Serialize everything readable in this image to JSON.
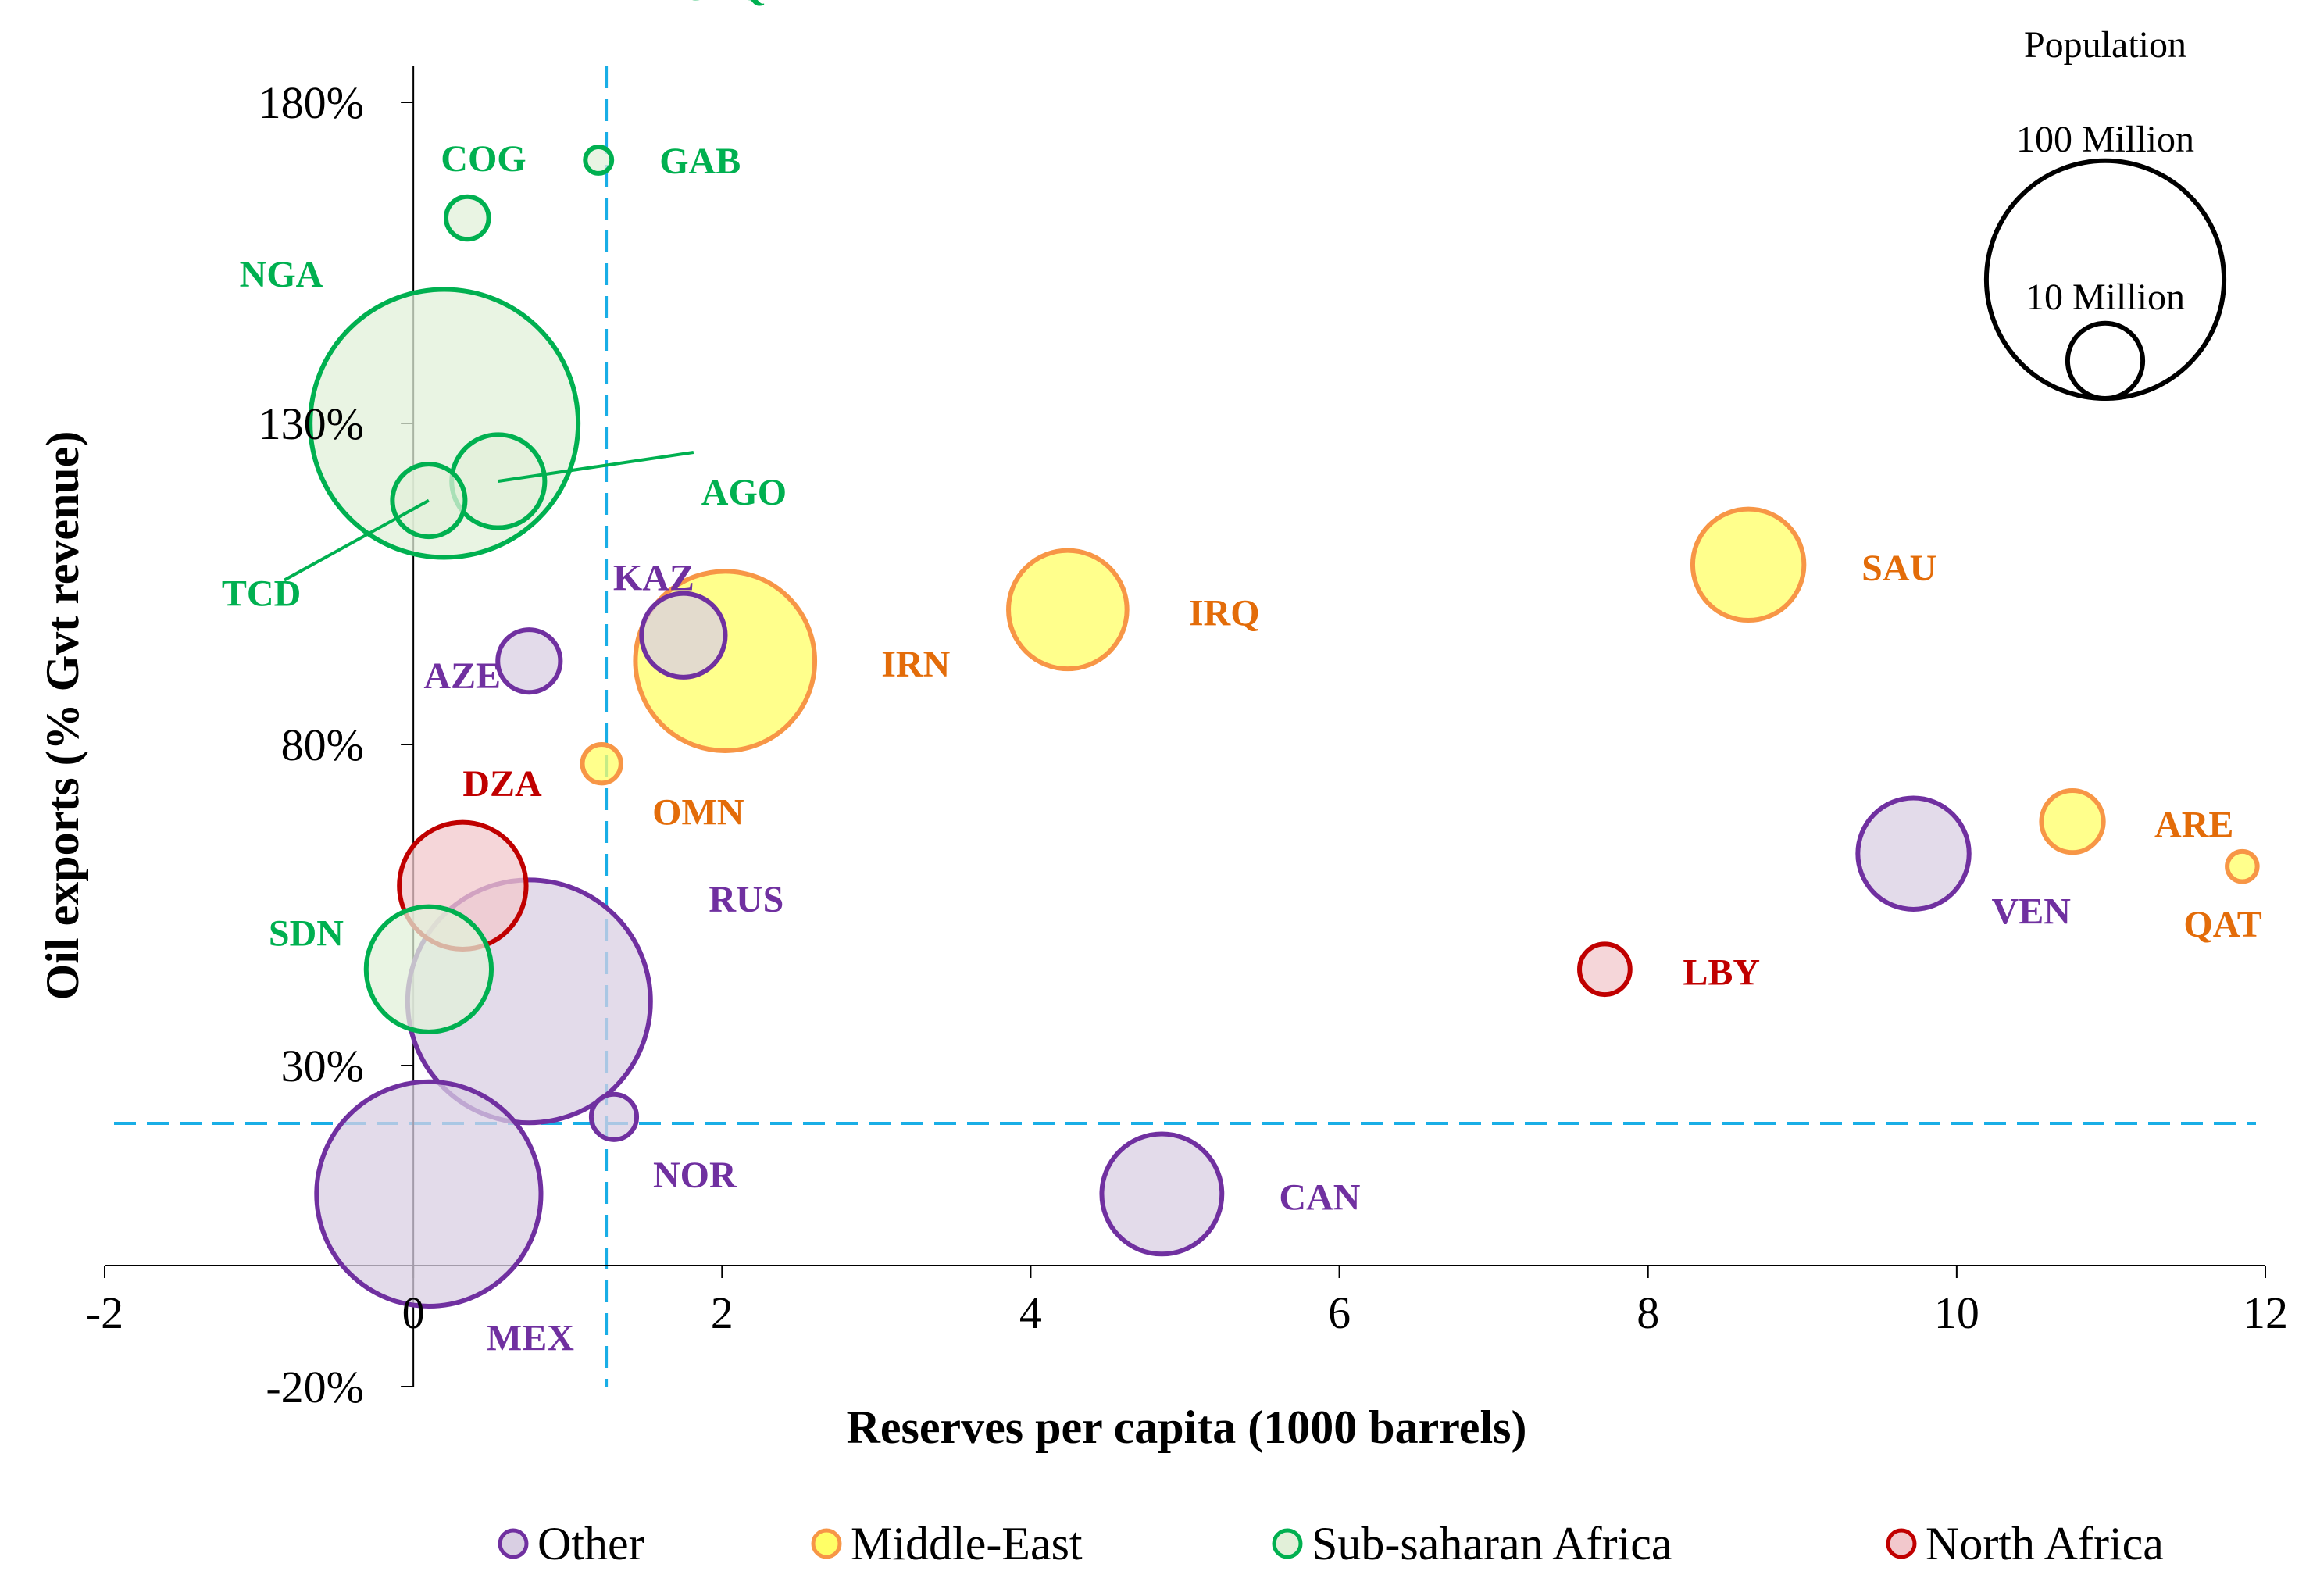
{
  "chart_data": {
    "type": "bubble",
    "title": "",
    "xlabel": "Reserves per capita (1000 barrels)",
    "ylabel": "Oil exports (% Gvt revenue)",
    "xlim": [
      -2,
      12
    ],
    "ylim": [
      -20,
      200
    ],
    "x_ticks": [
      -2,
      0,
      2,
      4,
      6,
      8,
      10,
      12
    ],
    "x_tick_labels": [
      "-2",
      "0",
      "2",
      "4",
      "6",
      "8",
      "10",
      "12"
    ],
    "y_ticks": [
      -20,
      30,
      80,
      130,
      180
    ],
    "y_tick_labels": [
      "-20%",
      "30%",
      "80%",
      "130%",
      "180%"
    ],
    "reference_lines": {
      "x": 1.25,
      "y": 21
    },
    "bubble_size": "population (millions), area proportional",
    "series": [
      {
        "name": "Other",
        "stroke": "#7030a0",
        "fill": "#d9cfe3",
        "label_color": "#7030a0",
        "points": [
          {
            "code": "MEX",
            "x": 0.1,
            "y": 10,
            "pop": 122
          },
          {
            "code": "RUS",
            "x": 0.75,
            "y": 40,
            "pop": 143
          },
          {
            "code": "NOR",
            "x": 1.3,
            "y": 22,
            "pop": 5
          },
          {
            "code": "AZE",
            "x": 0.75,
            "y": 93,
            "pop": 9.5
          },
          {
            "code": "KAZ",
            "x": 1.75,
            "y": 97,
            "pop": 17
          },
          {
            "code": "CAN",
            "x": 4.85,
            "y": 10,
            "pop": 35
          },
          {
            "code": "VEN",
            "x": 9.72,
            "y": 63,
            "pop": 30
          }
        ]
      },
      {
        "name": "Middle-East",
        "stroke": "#f79646",
        "fill": "#ffff66",
        "label_color": "#e36c09",
        "points": [
          {
            "code": "IRN",
            "x": 2.02,
            "y": 93,
            "pop": 78
          },
          {
            "code": "IRQ",
            "x": 4.24,
            "y": 101,
            "pop": 34
          },
          {
            "code": "SAU",
            "x": 8.65,
            "y": 108,
            "pop": 30
          },
          {
            "code": "OMN",
            "x": 1.22,
            "y": 77,
            "pop": 3.6
          },
          {
            "code": "ARE",
            "x": 10.75,
            "y": 68,
            "pop": 9.3
          },
          {
            "code": "QAT",
            "x": 11.85,
            "y": 61,
            "pop": 2.2
          }
        ]
      },
      {
        "name": "Sub-saharan Africa",
        "stroke": "#00b050",
        "fill": "#e2f0d9",
        "label_color": "#00b050",
        "points": [
          {
            "code": "NGA",
            "x": 0.2,
            "y": 130,
            "pop": 174
          },
          {
            "code": "AGO",
            "x": 0.55,
            "y": 121,
            "pop": 21
          },
          {
            "code": "TCD",
            "x": 0.1,
            "y": 118,
            "pop": 12.8
          },
          {
            "code": "COG",
            "x": 0.35,
            "y": 162,
            "pop": 4.4
          },
          {
            "code": "GAB",
            "x": 1.2,
            "y": 171,
            "pop": 1.7
          },
          {
            "code": "GNQ",
            "x": 1.35,
            "y": 198,
            "pop": 0.8
          },
          {
            "code": "SDN",
            "x": 0.1,
            "y": 45,
            "pop": 38
          }
        ]
      },
      {
        "name": "North Africa",
        "stroke": "#c00000",
        "fill": "#f2c8cc",
        "label_color": "#c00000",
        "points": [
          {
            "code": "DZA",
            "x": 0.32,
            "y": 58,
            "pop": 39
          },
          {
            "code": "LBY",
            "x": 7.72,
            "y": 45,
            "pop": 6.2
          }
        ]
      }
    ],
    "legend": [
      "Other",
      "Middle-East",
      "Sub-saharan Africa",
      "North Africa"
    ],
    "size_legend": {
      "title": "Population",
      "entries": [
        {
          "label": "100 Million",
          "pop": 100
        },
        {
          "label": "10 Million",
          "pop": 10
        }
      ]
    }
  }
}
